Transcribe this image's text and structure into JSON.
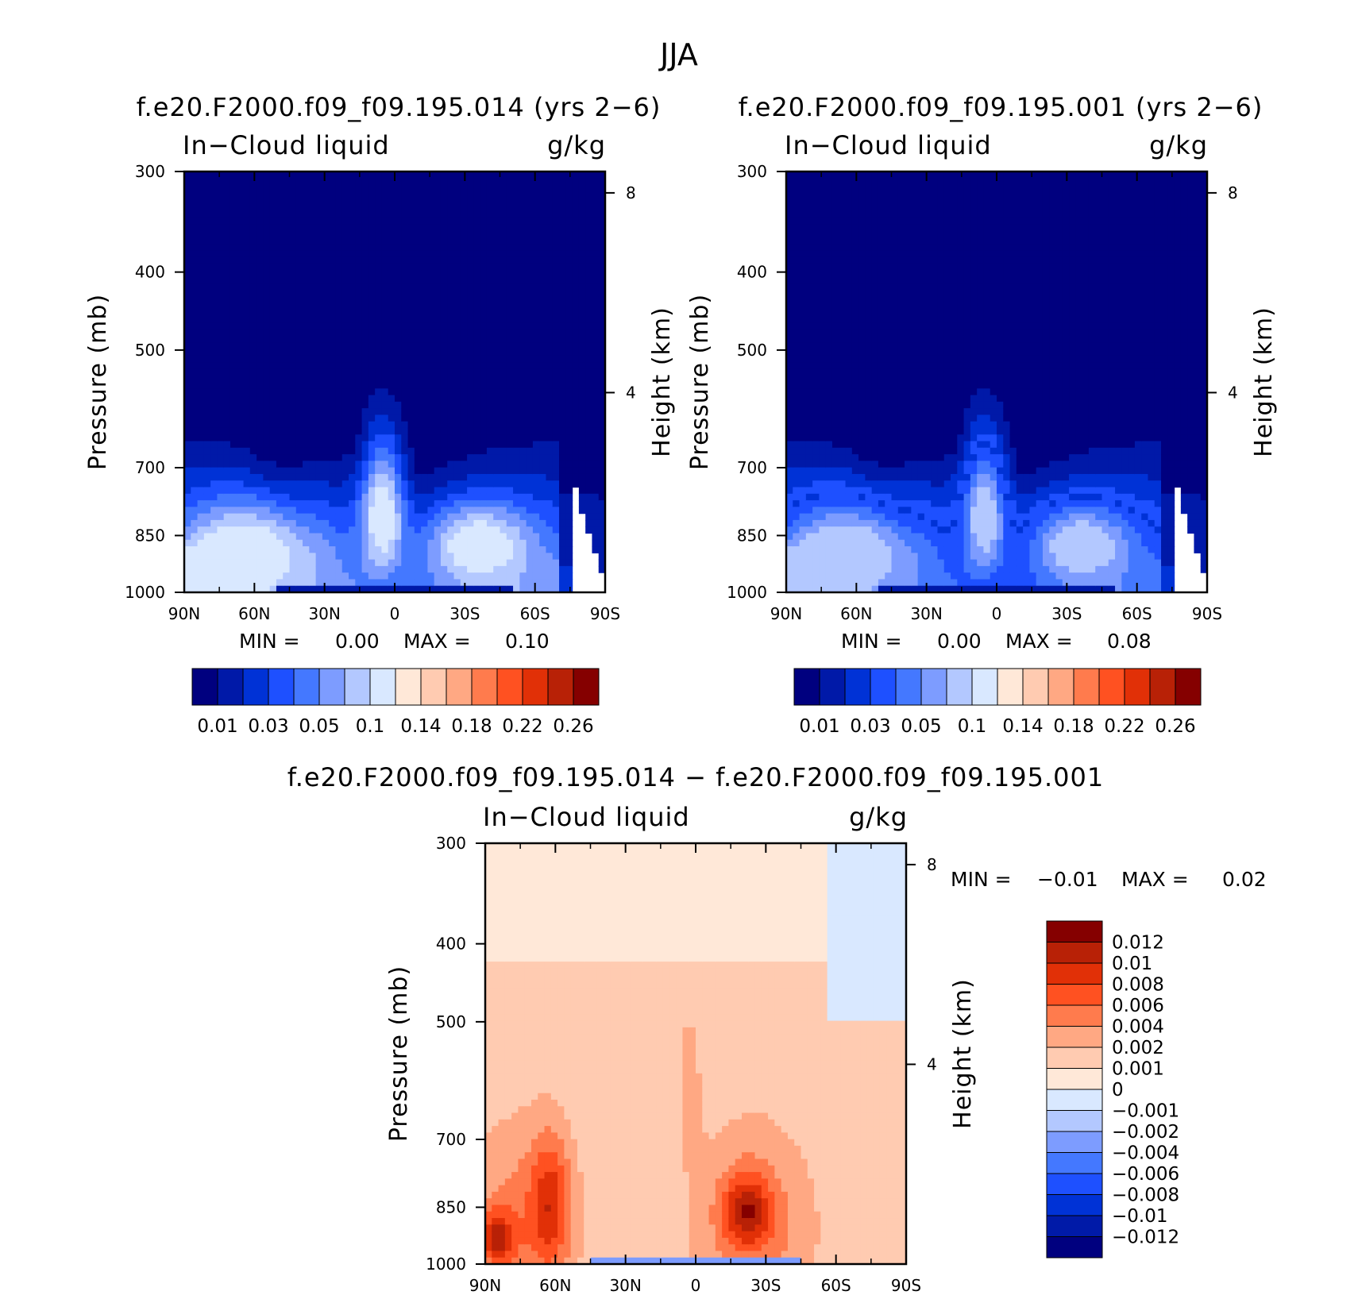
{
  "figure_title": "JJA",
  "colors": {
    "cloud_scale": [
      "#00007f",
      "#0019a8",
      "#0032d6",
      "#1e50ff",
      "#4478ff",
      "#7d9cff",
      "#b3c8ff",
      "#d9e8ff",
      "#ffe8d8",
      "#ffcbb1",
      "#ffa883",
      "#ff7b4d",
      "#ff5121",
      "#e13007",
      "#b82106",
      "#850000"
    ],
    "diff_scale": [
      "#00007f",
      "#001aa8",
      "#0032d6",
      "#1e50ff",
      "#4478ff",
      "#7d9cff",
      "#b3c8ff",
      "#d9e8ff",
      "#ffe8d8",
      "#ffcbb1",
      "#ffa883",
      "#ff7b4d",
      "#ff5121",
      "#e13007",
      "#b82106",
      "#850000"
    ],
    "frame": "#000000"
  },
  "chart_data": [
    {
      "type": "heatmap",
      "name": "panel-1",
      "title": "f.e20.F2000.f09_f09.195.014 (yrs 2−6)",
      "left_label": "In−Cloud liquid",
      "right_label": "g/kg",
      "xlabel": "",
      "ylabel": "Pressure (mb)",
      "ylabel_right": "Height (km)",
      "x_ticks": [
        "90N",
        "60N",
        "30N",
        "0",
        "30S",
        "60S",
        "90S"
      ],
      "xlim": [
        90,
        -90
      ],
      "y_ticks": [
        "300",
        "400",
        "500",
        "700",
        "850",
        "1000"
      ],
      "ylim": [
        1000,
        300
      ],
      "y_scale": "log",
      "right_ticks": [
        "8",
        "4"
      ],
      "min_label": "MIN =",
      "min_value": "0.00",
      "max_label": "MAX =",
      "max_value": "0.10",
      "colorbar_labels": [
        "0.01",
        "0.03",
        "0.05",
        "0.1",
        "0.14",
        "0.18",
        "0.22",
        "0.26"
      ],
      "colorbar_orientation": "horizontal"
    },
    {
      "type": "heatmap",
      "name": "panel-2",
      "title": "f.e20.F2000.f09_f09.195.001 (yrs 2−6)",
      "left_label": "In−Cloud liquid",
      "right_label": "g/kg",
      "xlabel": "",
      "ylabel": "Pressure (mb)",
      "ylabel_right": "Height (km)",
      "x_ticks": [
        "90N",
        "60N",
        "30N",
        "0",
        "30S",
        "60S",
        "90S"
      ],
      "xlim": [
        90,
        -90
      ],
      "y_ticks": [
        "300",
        "400",
        "500",
        "700",
        "850",
        "1000"
      ],
      "ylim": [
        1000,
        300
      ],
      "y_scale": "log",
      "right_ticks": [
        "8",
        "4"
      ],
      "min_label": "MIN =",
      "min_value": "0.00",
      "max_label": "MAX =",
      "max_value": "0.08",
      "colorbar_labels": [
        "0.01",
        "0.03",
        "0.05",
        "0.1",
        "0.14",
        "0.18",
        "0.22",
        "0.26"
      ],
      "colorbar_orientation": "horizontal"
    },
    {
      "type": "heatmap",
      "name": "panel-3",
      "title": "f.e20.F2000.f09_f09.195.014 − f.e20.F2000.f09_f09.195.001",
      "left_label": "In−Cloud liquid",
      "right_label": "g/kg",
      "xlabel": "",
      "ylabel": "Pressure (mb)",
      "ylabel_right": "Height (km)",
      "x_ticks": [
        "90N",
        "60N",
        "30N",
        "0",
        "30S",
        "60S",
        "90S"
      ],
      "xlim": [
        90,
        -90
      ],
      "y_ticks": [
        "300",
        "400",
        "500",
        "700",
        "850",
        "1000"
      ],
      "ylim": [
        1000,
        300
      ],
      "y_scale": "log",
      "right_ticks": [
        "8",
        "4"
      ],
      "min_label": "MIN =",
      "min_value": "−0.01",
      "max_label": "MAX =",
      "max_value": "0.02",
      "colorbar_labels": [
        "0.012",
        "0.01",
        "0.008",
        "0.006",
        "0.004",
        "0.002",
        "0.001",
        "0",
        "−0.001",
        "−0.002",
        "−0.004",
        "−0.006",
        "−0.008",
        "−0.01",
        "−0.012"
      ],
      "colorbar_orientation": "vertical"
    }
  ]
}
